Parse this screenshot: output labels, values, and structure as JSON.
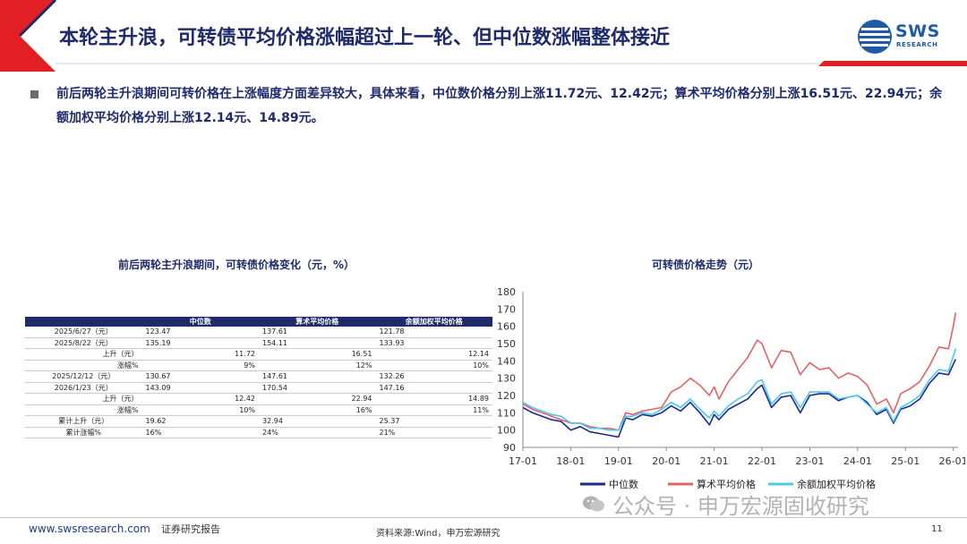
{
  "header": {
    "title": "本轮主升浪，可转债平均价格涨幅超过上一轮、但中位数涨幅整体接近",
    "logo_text": "SWS",
    "logo_sub": "RESEARCH"
  },
  "bullet": {
    "text": "前后两轮主升浪期间可转价格在上涨幅度方面差异较大，具体来看，中位数价格分别上涨11.72元、12.42元；算术平均价格分别上涨16.51元、22.94元；余额加权平均价格分别上涨12.14元、14.89元。"
  },
  "left_panel": {
    "subtitle": "前后两轮主升浪期间，可转债价格变化（元，%）",
    "table": {
      "headers": [
        "",
        "中位数",
        "算术平均价格",
        "余额加权平均价格"
      ],
      "rows": [
        {
          "label": "2025/6/27（元）",
          "align": "c",
          "values": [
            "123.47",
            "137.61",
            "121.78"
          ]
        },
        {
          "label": "2025/8/22（元）",
          "align": "c",
          "values": [
            "135.19",
            "154.11",
            "133.93"
          ]
        },
        {
          "label": "上升（元）",
          "align": "r",
          "values": [
            "11.72",
            "16.51",
            "12.14"
          ]
        },
        {
          "label": "涨幅%",
          "align": "r",
          "values": [
            "9%",
            "12%",
            "10%"
          ]
        },
        {
          "label": "2025/12/12（元）",
          "align": "c",
          "values": [
            "130.67",
            "147.61",
            "132.26"
          ]
        },
        {
          "label": "2026/1/23（元）",
          "align": "c",
          "values": [
            "143.09",
            "170.54",
            "147.16"
          ]
        },
        {
          "label": "上升（元）",
          "align": "r",
          "values": [
            "12.42",
            "22.94",
            "14.89"
          ]
        },
        {
          "label": "涨幅%",
          "align": "r",
          "values": [
            "10%",
            "16%",
            "11%"
          ]
        },
        {
          "label": "累计上升（元）",
          "align": "c",
          "values": [
            "19.62",
            "32.94",
            "25.37"
          ]
        },
        {
          "label": "累计涨幅%",
          "align": "c",
          "values": [
            "16%",
            "24%",
            "21%"
          ]
        }
      ]
    }
  },
  "right_panel": {
    "subtitle": "可转债价格走势（元）"
  },
  "chart_data": {
    "type": "line",
    "title": "",
    "xlabel": "",
    "ylabel": "",
    "x_ticks": [
      "17-01",
      "18-01",
      "19-01",
      "20-01",
      "21-01",
      "22-01",
      "23-01",
      "24-01",
      "25-01",
      "26-01"
    ],
    "ylim": [
      90,
      180
    ],
    "y_ticks": [
      90,
      100,
      110,
      120,
      130,
      140,
      150,
      160,
      170,
      180
    ],
    "grid": false,
    "legend_position": "bottom",
    "x_domain": [
      2017.0,
      2026.1
    ],
    "series": [
      {
        "name": "中位数",
        "color": "#1a2a8c",
        "x": [
          2017.0,
          2017.2,
          2017.4,
          2017.6,
          2017.8,
          2018.0,
          2018.2,
          2018.4,
          2018.6,
          2018.8,
          2019.0,
          2019.15,
          2019.3,
          2019.5,
          2019.7,
          2019.9,
          2020.1,
          2020.3,
          2020.5,
          2020.7,
          2020.9,
          2021.0,
          2021.1,
          2021.3,
          2021.5,
          2021.7,
          2021.9,
          2022.0,
          2022.2,
          2022.4,
          2022.6,
          2022.8,
          2023.0,
          2023.2,
          2023.4,
          2023.6,
          2023.8,
          2024.0,
          2024.2,
          2024.4,
          2024.6,
          2024.75,
          2024.9,
          2025.1,
          2025.3,
          2025.5,
          2025.7,
          2025.9,
          2026.05
        ],
        "values": [
          113,
          110,
          108,
          106,
          105,
          100,
          102,
          99,
          98,
          97,
          96,
          107,
          106,
          109,
          108,
          110,
          114,
          111,
          116,
          110,
          103,
          109,
          106,
          112,
          115,
          118,
          124,
          126,
          113,
          119,
          120,
          110,
          120,
          121,
          121,
          117,
          119,
          120,
          116,
          109,
          112,
          104,
          112,
          114,
          118,
          127,
          133,
          132,
          141
        ]
      },
      {
        "name": "算术平均价格",
        "color": "#e06464",
        "x": [
          2017.0,
          2017.2,
          2017.4,
          2017.6,
          2017.8,
          2018.0,
          2018.2,
          2018.4,
          2018.6,
          2018.8,
          2019.0,
          2019.15,
          2019.3,
          2019.5,
          2019.7,
          2019.9,
          2020.1,
          2020.3,
          2020.5,
          2020.7,
          2020.9,
          2021.0,
          2021.1,
          2021.3,
          2021.5,
          2021.7,
          2021.9,
          2022.0,
          2022.2,
          2022.4,
          2022.6,
          2022.8,
          2023.0,
          2023.2,
          2023.4,
          2023.6,
          2023.8,
          2024.0,
          2024.2,
          2024.4,
          2024.6,
          2024.75,
          2024.9,
          2025.1,
          2025.3,
          2025.5,
          2025.7,
          2025.9,
          2026.0,
          2026.05
        ],
        "values": [
          115,
          112,
          110,
          108,
          106,
          104,
          104,
          102,
          101,
          101,
          100,
          110,
          109,
          111,
          112,
          113,
          122,
          125,
          130,
          126,
          120,
          125,
          118,
          128,
          135,
          142,
          152,
          150,
          136,
          146,
          145,
          132,
          139,
          135,
          136,
          130,
          133,
          131,
          126,
          115,
          118,
          110,
          121,
          124,
          128,
          137,
          148,
          147,
          160,
          168
        ]
      },
      {
        "name": "余额加权平均价格",
        "color": "#4cc9f0",
        "x": [
          2017.0,
          2017.2,
          2017.4,
          2017.6,
          2017.8,
          2018.0,
          2018.2,
          2018.4,
          2018.6,
          2018.8,
          2019.0,
          2019.15,
          2019.3,
          2019.5,
          2019.7,
          2019.9,
          2020.1,
          2020.3,
          2020.5,
          2020.7,
          2020.9,
          2021.0,
          2021.1,
          2021.3,
          2021.5,
          2021.7,
          2021.9,
          2022.0,
          2022.2,
          2022.4,
          2022.6,
          2022.8,
          2023.0,
          2023.2,
          2023.4,
          2023.6,
          2023.8,
          2024.0,
          2024.2,
          2024.4,
          2024.6,
          2024.75,
          2024.9,
          2025.1,
          2025.3,
          2025.5,
          2025.7,
          2025.9,
          2026.05
        ],
        "values": [
          116,
          113,
          111,
          109,
          108,
          104,
          104,
          101,
          101,
          100,
          100,
          108,
          108,
          110,
          109,
          112,
          116,
          113,
          118,
          112,
          107,
          111,
          108,
          114,
          118,
          121,
          128,
          129,
          115,
          121,
          122,
          113,
          122,
          122,
          122,
          118,
          119,
          120,
          115,
          110,
          113,
          105,
          113,
          116,
          120,
          129,
          135,
          134,
          147
        ]
      }
    ]
  },
  "footer": {
    "url": "www.swsresearch.com",
    "label": "证券研究报告",
    "source": "资料来源:Wind，申万宏源研究",
    "page": "11",
    "watermark": "公众号 · 申万宏源固收研究"
  },
  "colors": {
    "accent_red": "#e31f26",
    "title_navy": "#1f2a6b",
    "logo_blue": "#1e5aa8"
  }
}
